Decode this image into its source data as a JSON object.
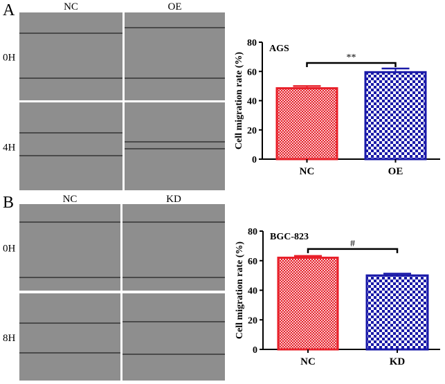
{
  "panels": [
    {
      "letter": "A",
      "columns": [
        "NC",
        "OE"
      ],
      "rows": [
        "0H",
        "4H"
      ]
    },
    {
      "letter": "B",
      "columns": [
        "NC",
        "KD"
      ],
      "rows": [
        "0H",
        "8H"
      ]
    }
  ],
  "colors": {
    "red": "#e8202a",
    "blue": "#1a1aa8",
    "micrograph": "#8e8e8e"
  },
  "chart_data": [
    {
      "type": "bar",
      "title": "AGS",
      "ylabel": "Cell migration rate (%)",
      "xlabel": "",
      "categories": [
        "NC",
        "OE"
      ],
      "values": [
        48.5,
        59.5
      ],
      "errors": [
        1.5,
        2.5
      ],
      "ylim": [
        0,
        80
      ],
      "yticks": [
        "0",
        "20",
        "40",
        "60",
        "80"
      ],
      "significance": "**",
      "bar_colors": [
        "#e8202a",
        "#1a1aa8"
      ],
      "grid": false
    },
    {
      "type": "bar",
      "title": "BGC-823",
      "ylabel": "Cell migration rate (%)",
      "xlabel": "",
      "categories": [
        "NC",
        "KD"
      ],
      "values": [
        62,
        50
      ],
      "errors": [
        1.2,
        1.2
      ],
      "ylim": [
        0,
        80
      ],
      "yticks": [
        "0",
        "20",
        "40",
        "60",
        "80"
      ],
      "significance": "#",
      "bar_colors": [
        "#e8202a",
        "#1a1aa8"
      ],
      "grid": false
    }
  ]
}
